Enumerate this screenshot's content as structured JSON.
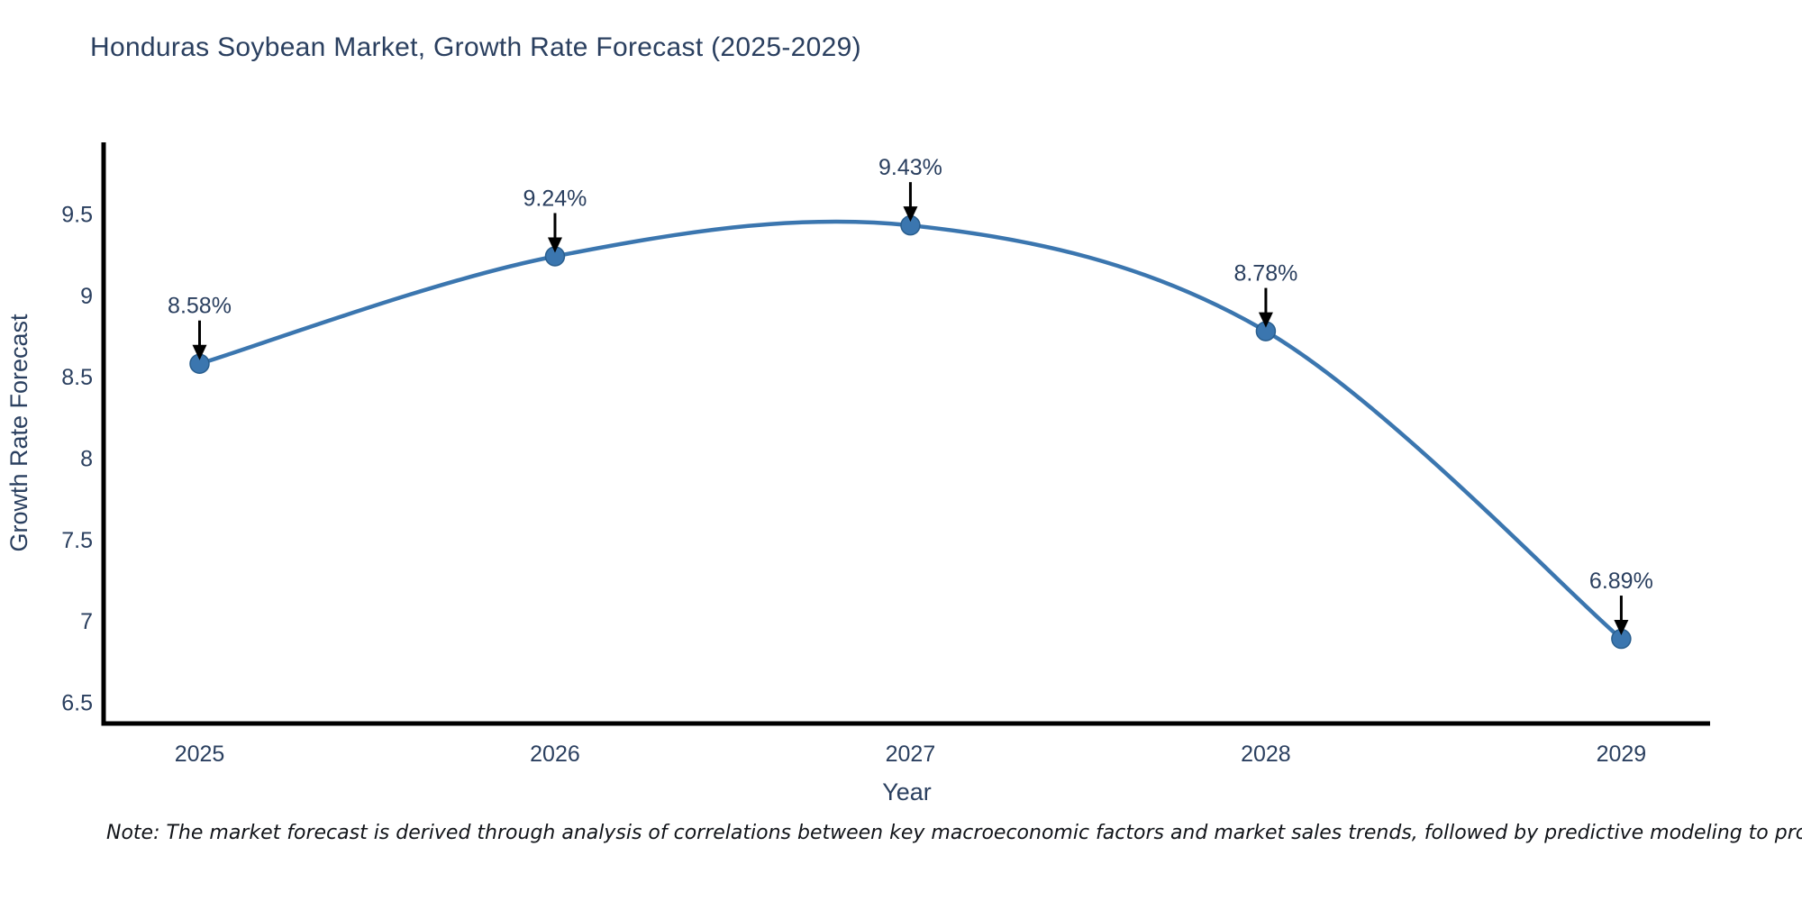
{
  "title": "Honduras Soybean Market, Growth Rate Forecast (2025-2029)",
  "note": "Note: The market forecast is derived through analysis of correlations between key macroeconomic factors and market sales trends, followed by predictive modeling to project future sales",
  "chart_data": {
    "type": "line",
    "title": "Honduras Soybean Market, Growth Rate Forecast (2025-2029)",
    "xlabel": "Year",
    "ylabel": "Growth Rate Forecast",
    "x": [
      2025,
      2026,
      2027,
      2028,
      2029
    ],
    "categories": [
      "2025",
      "2026",
      "2027",
      "2028",
      "2029"
    ],
    "series": [
      {
        "name": "Growth Rate Forecast",
        "values": [
          8.58,
          9.24,
          9.43,
          8.78,
          6.89
        ]
      }
    ],
    "point_labels": [
      "8.58%",
      "9.24%",
      "9.43%",
      "8.78%",
      "6.89%"
    ],
    "yticks": [
      6.5,
      7,
      7.5,
      8,
      8.5,
      9,
      9.5
    ],
    "ytick_labels": [
      "6.5",
      "7",
      "7.5",
      "8",
      "8.5",
      "9",
      "9.5"
    ],
    "ylim": [
      6.37,
      9.94
    ],
    "xlim": [
      2024.73,
      2029.25
    ],
    "line_shape": "spline",
    "grid": false,
    "legend_position": "none",
    "colors": {
      "line": "#3b76af",
      "marker": "#3b76af",
      "marker_edge": "#295e8e",
      "axis": "#000000",
      "text": "#2a3f5f",
      "annotation": "#2a3f5f",
      "arrow": "#000000"
    }
  }
}
